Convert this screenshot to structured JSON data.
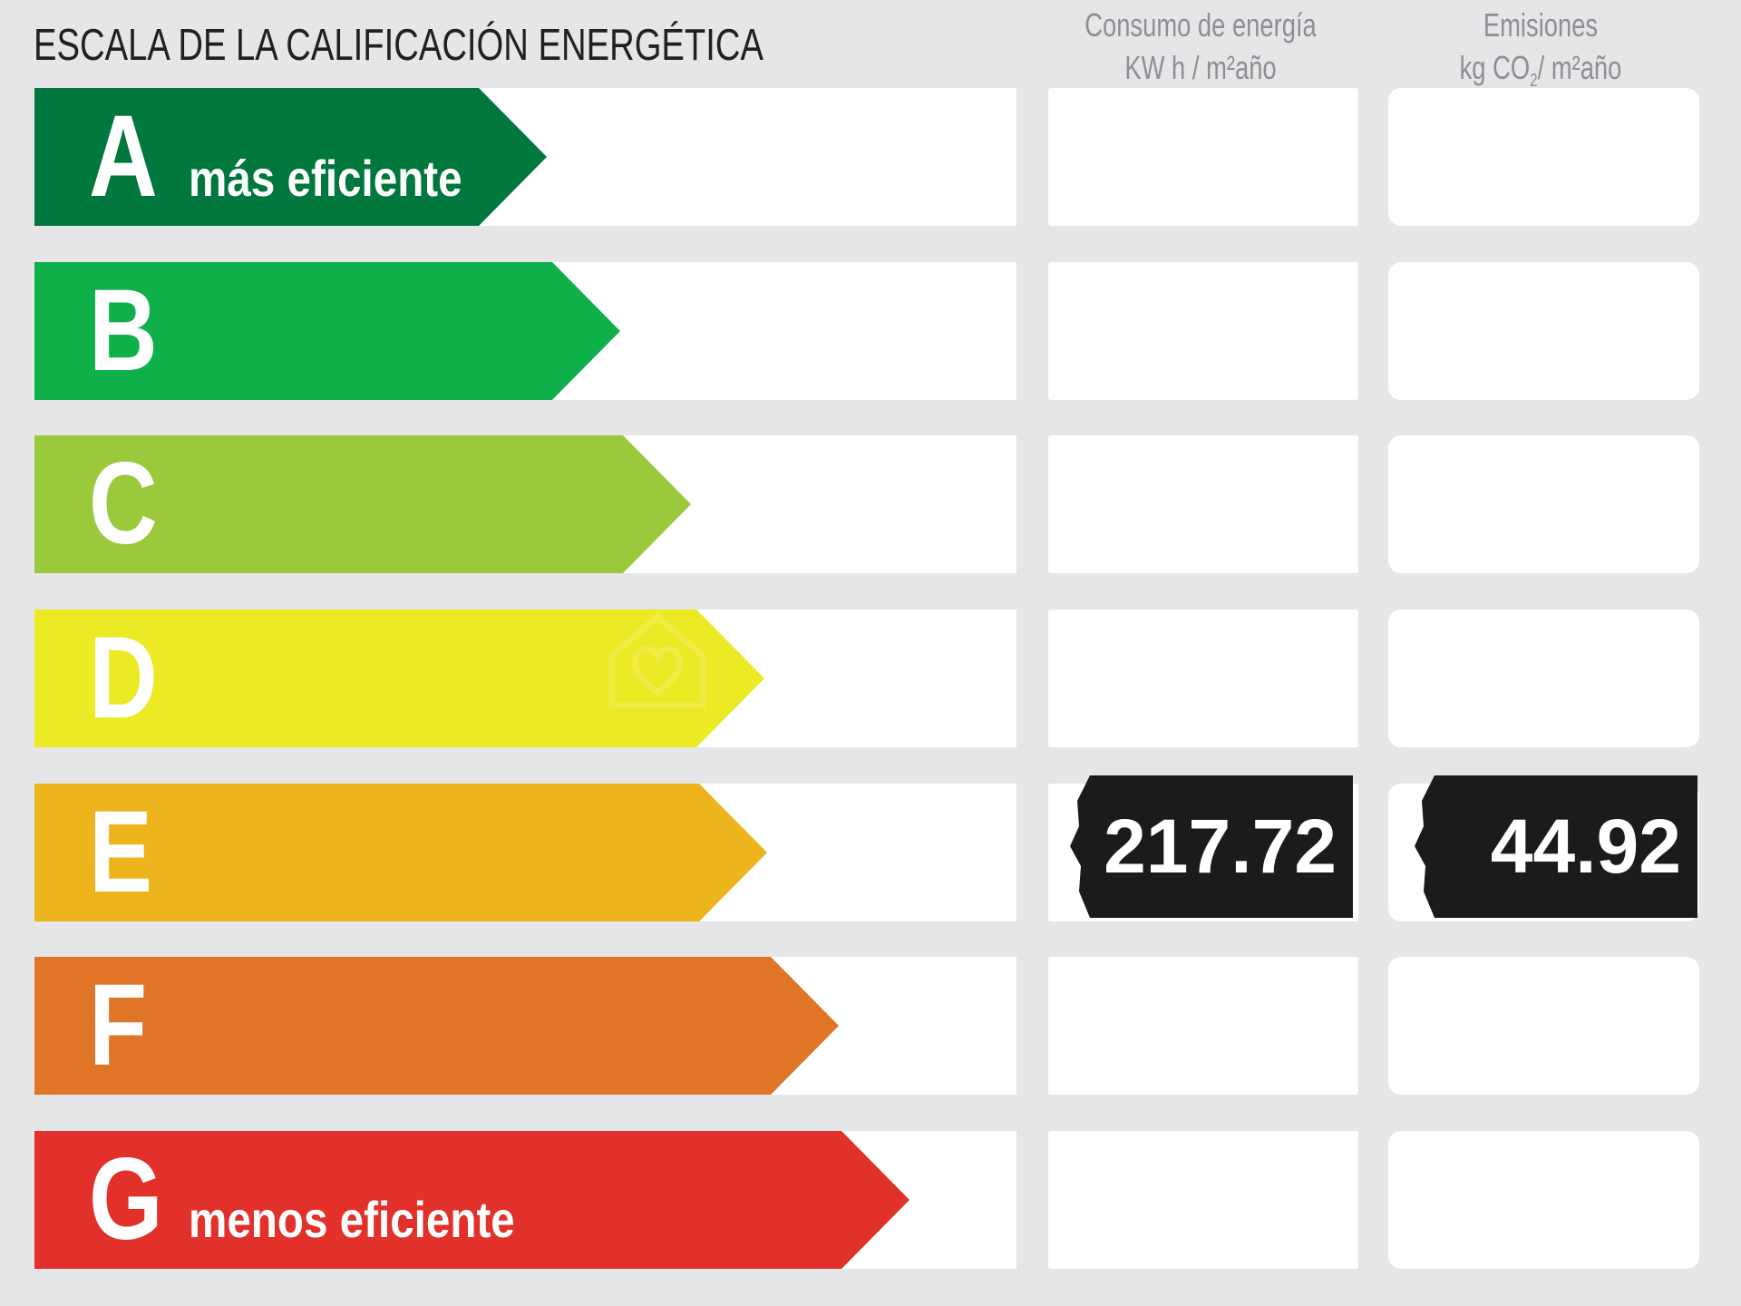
{
  "title": "ESCALA DE LA CALIFICACIÓN ENERGÉTICA",
  "columns": {
    "consumo": {
      "line1": "Consumo de energía",
      "line2": "KW h / m²año"
    },
    "emisiones": {
      "line1": "Emisiones",
      "line2_a": "kg CO",
      "line2_sub": "2",
      "line2_b": "/ m²año"
    }
  },
  "rating_rows": [
    {
      "letter": "A",
      "label": "más eficiente",
      "color": "#00773d"
    },
    {
      "letter": "B",
      "label": "",
      "color": "#0fb04a"
    },
    {
      "letter": "C",
      "label": "",
      "color": "#9aca3c"
    },
    {
      "letter": "D",
      "label": "",
      "color": "#ecea25"
    },
    {
      "letter": "E",
      "label": "",
      "color": "#eeb41c"
    },
    {
      "letter": "F",
      "label": "",
      "color": "#e07527"
    },
    {
      "letter": "G",
      "label": "menos eficiente",
      "color": "#e2302a"
    }
  ],
  "current_rating": {
    "letter": "E",
    "consumo_value": "217.72",
    "emisiones_value": "44.92",
    "badge_color": "#1b1b1b"
  },
  "watermark_icon": "house-heart-icon"
}
